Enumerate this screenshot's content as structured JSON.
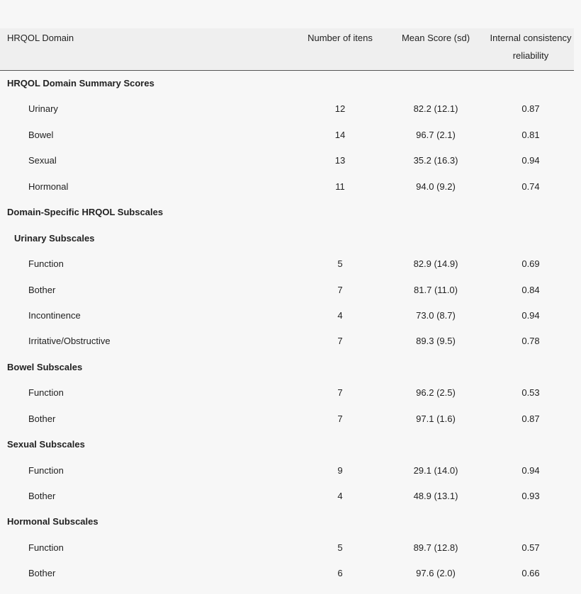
{
  "table": {
    "header": [
      "HRQOL Domain",
      "Number of itens",
      "Mean Score (sd)",
      "Internal consistency reliability"
    ],
    "rows": [
      [
        "HRQOL Domain Summary Scores"
      ],
      [
        "Urinary",
        12,
        "82.2 (12.1)",
        0.87
      ],
      [
        "Bowel",
        14,
        "96.7 (2.1)",
        0.81
      ],
      [
        "Sexual",
        13,
        "35.2 (16.3)",
        0.94
      ],
      [
        "Hormonal",
        11,
        "94.0 (9.2)",
        0.74
      ],
      [
        "Domain-Specific HRQOL Subscales"
      ],
      [
        "Urinary Subscales"
      ],
      [
        "Function",
        5,
        "82.9 (14.9)",
        0.69
      ],
      [
        "Bother",
        7,
        "81.7 (11.0)",
        0.84
      ],
      [
        "Incontinence",
        4,
        "73.0 (8.7)",
        0.94
      ],
      [
        "Irritative/Obstructive",
        7,
        "89.3 (9.5)",
        0.78
      ],
      [
        "Bowel Subscales"
      ],
      [
        "Function",
        7,
        "96.2 (2.5)",
        0.53
      ],
      [
        "Bother",
        7,
        "97.1 (1.6)",
        0.87
      ],
      [
        "Sexual Subscales"
      ],
      [
        "Function",
        9,
        "29.1 (14.0)",
        0.94
      ],
      [
        "Bother",
        4,
        "48.9 (13.1)",
        0.93
      ],
      [
        "Hormonal Subscales"
      ],
      [
        "Function",
        5,
        "89.7 (12.8)",
        0.57
      ],
      [
        "Bother",
        6,
        "97.6 (2.0)",
        0.66
      ]
    ]
  }
}
